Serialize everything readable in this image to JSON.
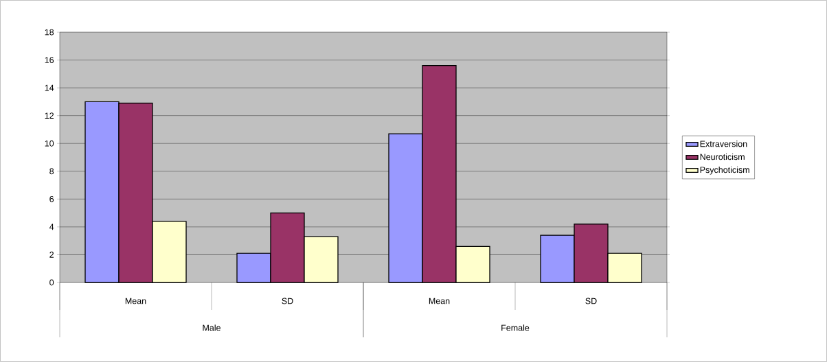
{
  "chart_data": {
    "type": "bar",
    "categories": [
      "Mean",
      "SD",
      "Mean",
      "SD"
    ],
    "series": [
      {
        "name": "Extraversion",
        "color": "#9999ff",
        "values": [
          13.0,
          2.1,
          10.7,
          3.4
        ]
      },
      {
        "name": "Neuroticism",
        "color": "#993366",
        "values": [
          12.9,
          5.0,
          15.6,
          4.2
        ]
      },
      {
        "name": "Psychoticism",
        "color": "#ffffcc",
        "values": [
          4.4,
          3.3,
          2.6,
          2.1
        ]
      }
    ],
    "annotations": [
      "Male",
      "Female"
    ],
    "ylim": [
      0,
      18
    ],
    "yticks": [
      0,
      2,
      4,
      6,
      8,
      10,
      12,
      14,
      16,
      18
    ],
    "grid": "y",
    "legend": "right"
  }
}
